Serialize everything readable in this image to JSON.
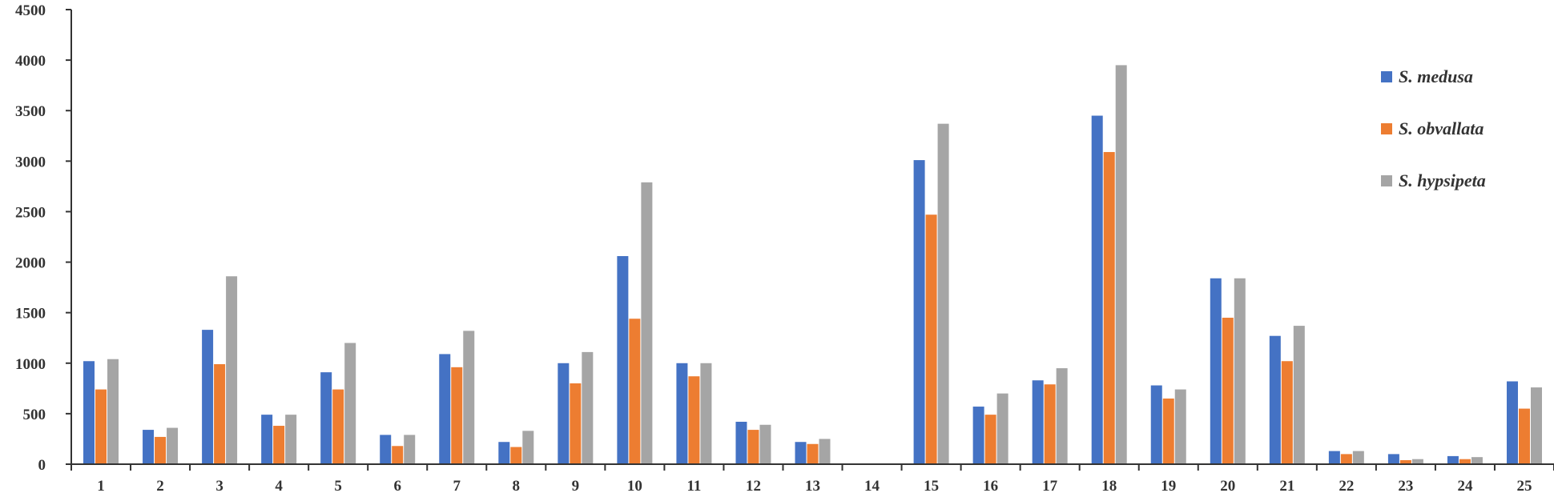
{
  "chart_data": {
    "type": "bar",
    "title": "",
    "xlabel": "",
    "ylabel": "",
    "ylim": [
      0,
      4500
    ],
    "yticks": [
      0,
      500,
      1000,
      1500,
      2000,
      2500,
      3000,
      3500,
      4000,
      4500
    ],
    "grid": false,
    "legend_position": "top-right",
    "categories": [
      "1",
      "2",
      "3",
      "4",
      "5",
      "6",
      "7",
      "8",
      "9",
      "10",
      "11",
      "12",
      "13",
      "14",
      "15",
      "16",
      "17",
      "18",
      "19",
      "20",
      "21",
      "22",
      "23",
      "24",
      "25"
    ],
    "series": [
      {
        "name": "S. medusa",
        "color": "#4472C4",
        "values": [
          1020,
          340,
          1330,
          490,
          910,
          290,
          1090,
          220,
          1000,
          2060,
          1000,
          420,
          220,
          0,
          3010,
          570,
          830,
          3450,
          780,
          1840,
          1270,
          130,
          100,
          80,
          820
        ]
      },
      {
        "name": "S. obvallata",
        "color": "#ED7D31",
        "values": [
          740,
          270,
          990,
          380,
          740,
          180,
          960,
          170,
          800,
          1440,
          870,
          340,
          200,
          0,
          2470,
          490,
          790,
          3090,
          650,
          1450,
          1020,
          100,
          40,
          50,
          550
        ]
      },
      {
        "name": "S. hypsipeta",
        "color": "#A5A5A5",
        "values": [
          1040,
          360,
          1860,
          490,
          1200,
          290,
          1320,
          330,
          1110,
          2790,
          1000,
          390,
          250,
          0,
          3370,
          700,
          950,
          3950,
          740,
          1840,
          1370,
          130,
          50,
          70,
          760
        ]
      }
    ]
  }
}
